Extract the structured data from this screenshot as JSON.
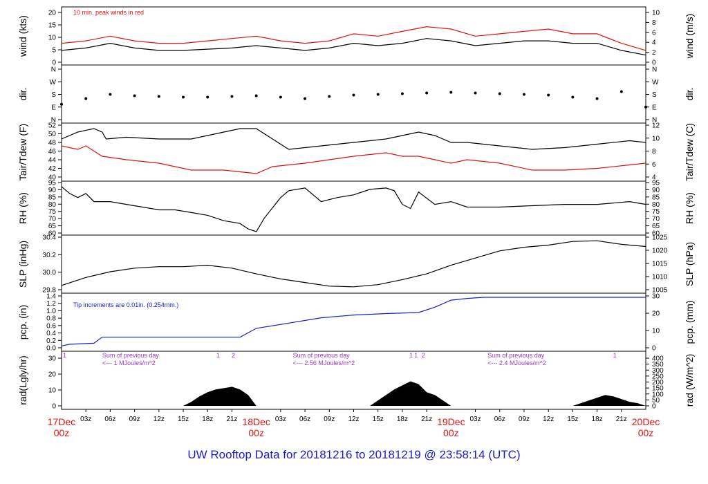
{
  "title": "UW Rooftop Data for 20181216  to  20181219 @ 23:58:14  (UTC)",
  "colors": {
    "black": "#000000",
    "red": "#e01010",
    "blue": "#1a1ad0",
    "purple": "#9933cc",
    "title": "#1a1ad0"
  },
  "chart_data": [
    {
      "id": "wind",
      "type": "line",
      "ylabel_left": "wind (kts)",
      "ylabel_right": "wind (m/s)",
      "yticks_left": [
        "0",
        "5",
        "10",
        "15",
        "20"
      ],
      "yticks_right": [
        "0",
        "2",
        "4",
        "6",
        "8",
        "10"
      ],
      "ylim": [
        0,
        21
      ],
      "ylim_right": [
        0,
        10.8
      ],
      "annotation": "10 min. peak winds in red",
      "series": [
        {
          "x": [
            0,
            3,
            6,
            9,
            12,
            15,
            18,
            21,
            24,
            27,
            30,
            33,
            36,
            39,
            42,
            45,
            48,
            51,
            54,
            57,
            60,
            63,
            66,
            69,
            72
          ],
          "values": [
            5,
            6,
            8,
            6,
            5,
            5,
            5.5,
            6,
            7,
            6,
            5,
            6,
            8,
            7,
            8,
            10,
            9,
            7,
            8,
            9,
            9,
            8,
            8,
            5,
            3
          ]
        },
        {
          "x": [
            0,
            3,
            6,
            9,
            12,
            15,
            18,
            21,
            24,
            27,
            30,
            33,
            36,
            39,
            42,
            45,
            48,
            51,
            54,
            57,
            60,
            63,
            66,
            69,
            72
          ],
          "values": [
            8,
            9,
            11,
            9,
            8,
            8,
            9,
            10,
            11,
            9,
            8,
            9,
            12,
            11,
            13,
            15,
            14,
            11,
            12,
            13,
            14,
            12,
            12,
            8,
            5
          ]
        }
      ]
    },
    {
      "id": "dir",
      "type": "scatter",
      "ylabel_left": "dir.",
      "ylabel_right": "dir.",
      "yticks_left": [
        "N",
        "E",
        "S",
        "W",
        "N"
      ],
      "yticks_right": [
        "N",
        "E",
        "S",
        "W",
        "N"
      ],
      "ylim": [
        0,
        360
      ],
      "x": [
        0,
        3,
        6,
        9,
        12,
        15,
        18,
        21,
        24,
        27,
        30,
        33,
        36,
        39,
        42,
        45,
        48,
        51,
        54,
        57,
        60,
        63,
        66,
        69,
        72
      ],
      "values": [
        110,
        150,
        180,
        170,
        165,
        160,
        160,
        165,
        170,
        160,
        150,
        165,
        175,
        180,
        185,
        190,
        195,
        190,
        185,
        180,
        175,
        160,
        150,
        200,
        90
      ]
    },
    {
      "id": "temp",
      "type": "line",
      "ylabel_left": "Tair/Tdew (F)",
      "ylabel_right": "Tair/Tdew (C)",
      "yticks_left": [
        "40",
        "42",
        "44",
        "46",
        "48",
        "50",
        "52"
      ],
      "yticks_right": [
        "4",
        "6",
        "8",
        "10",
        "12"
      ],
      "ylim": [
        39,
        54
      ],
      "ylim_right": [
        4,
        12
      ],
      "series": [
        {
          "x": [
            0,
            2,
            4,
            5,
            5.5,
            8,
            12,
            16,
            20,
            22,
            24,
            26,
            28,
            32,
            36,
            40,
            42,
            44,
            46,
            48,
            50,
            54,
            58,
            62,
            66,
            70,
            72
          ],
          "values": [
            50,
            52,
            53,
            52,
            50,
            50.5,
            50,
            50,
            52,
            53,
            53,
            50,
            47,
            48,
            49,
            50,
            51,
            52,
            51,
            49,
            49,
            48,
            47,
            47.5,
            48.5,
            49.5,
            49
          ]
        },
        {
          "x": [
            0,
            2,
            3,
            5,
            8,
            12,
            14,
            16,
            20,
            22,
            24,
            26,
            30,
            36,
            40,
            42,
            44,
            46,
            48,
            50,
            54,
            58,
            62,
            66,
            70,
            72
          ],
          "values": [
            48,
            47,
            48,
            45,
            44,
            43,
            42,
            41,
            41,
            40.5,
            40,
            42,
            43,
            45,
            46,
            45,
            45,
            44,
            43,
            44,
            43,
            41,
            41,
            41.5,
            42.5,
            43
          ]
        }
      ]
    },
    {
      "id": "rh",
      "type": "line",
      "ylabel_left": "RH (%)",
      "ylabel_right": "RH (%)",
      "yticks_left": [
        "60",
        "65",
        "70",
        "75",
        "80",
        "85",
        "90",
        "95"
      ],
      "yticks_right": [
        "60",
        "65",
        "70",
        "75",
        "80",
        "85",
        "90",
        "95"
      ],
      "ylim": [
        59,
        96
      ],
      "x": [
        0,
        1,
        2,
        3,
        4,
        6,
        8,
        10,
        12,
        14,
        16,
        18,
        20,
        22,
        23,
        24,
        25,
        27,
        28,
        30,
        32,
        34,
        36,
        38,
        40,
        41,
        42,
        43,
        44,
        46,
        48,
        50,
        54,
        58,
        62,
        66,
        70,
        72
      ],
      "values": [
        93,
        88,
        85,
        88,
        82,
        82,
        80,
        78,
        76,
        76,
        74,
        72,
        68,
        66,
        62,
        60,
        70,
        85,
        90,
        92,
        82,
        85,
        87,
        91,
        92,
        90,
        80,
        77,
        89,
        80,
        82,
        78,
        78,
        79,
        80,
        80,
        82,
        80
      ]
    },
    {
      "id": "slp",
      "type": "line",
      "ylabel_left": "SLP (inHg)",
      "ylabel_right": "SLP (hPa)",
      "yticks_left": [
        "29.8",
        "30.0",
        "30.2",
        "30.4"
      ],
      "yticks_right": [
        "1005",
        "1010",
        "1015",
        "1020",
        "1025"
      ],
      "ylim": [
        29.68,
        30.41
      ],
      "ylim_right": [
        1005.1,
        1029.8
      ],
      "x": [
        0,
        3,
        6,
        9,
        12,
        15,
        18,
        21,
        24,
        27,
        30,
        33,
        36,
        39,
        42,
        45,
        48,
        51,
        54,
        57,
        60,
        63,
        66,
        69,
        72
      ],
      "values": [
        29.74,
        29.85,
        29.93,
        29.98,
        30.0,
        30.0,
        30.02,
        29.98,
        29.9,
        29.83,
        29.78,
        29.73,
        29.72,
        29.75,
        29.82,
        29.9,
        30.02,
        30.12,
        30.22,
        30.27,
        30.3,
        30.35,
        30.36,
        30.31,
        30.28
      ]
    },
    {
      "id": "pcp",
      "type": "line",
      "ylabel_left": "pcp. (in)",
      "ylabel_right": "pcp. (mm)",
      "yticks_left": [
        "0.0",
        "0.2",
        "0.4",
        "0.6",
        "0.8",
        "1.0",
        "1.2",
        "1.4"
      ],
      "yticks_right": [
        "0",
        "10",
        "20",
        "30"
      ],
      "ylim": [
        -0.05,
        1.42
      ],
      "ylim_right": [
        -1.27,
        36.07
      ],
      "annotation": "Tip increments are 0.01in. (0.254mm.)",
      "x": [
        0,
        1,
        4,
        5,
        18,
        22,
        24,
        28,
        32,
        36,
        40,
        44,
        46,
        48,
        50,
        52,
        72
      ],
      "values": [
        0,
        0.05,
        0.08,
        0.25,
        0.25,
        0.25,
        0.5,
        0.65,
        0.8,
        0.88,
        0.92,
        0.95,
        1.1,
        1.3,
        1.35,
        1.38,
        1.38
      ]
    },
    {
      "id": "rad",
      "type": "area",
      "ylabel_left": "rad(Lgly/hr)",
      "ylabel_right": "rad (W/m^2)",
      "yticks_left": [
        "0",
        "10",
        "20",
        "30"
      ],
      "yticks_right": [
        "0",
        "50",
        "100",
        "150",
        "200",
        "250",
        "300",
        "350",
        "400"
      ],
      "ylim": [
        0,
        35
      ],
      "ylim_right": [
        0,
        406.4
      ],
      "annotations": [
        {
          "text": "Sum of previous day",
          "x": 4.5
        },
        {
          "text": "<--- 1 MJoules/m^2",
          "x": 4.5
        },
        {
          "text": "Sum of previous day",
          "x": 28
        },
        {
          "text": "<--- 2.56 MJoules/m^2",
          "x": 28
        },
        {
          "text": "Sum of previous day",
          "x": 52
        },
        {
          "text": "<--- 2.4 MJoules/m^2",
          "x": 52
        }
      ],
      "markers": [
        {
          "text": "1",
          "x": 0
        },
        {
          "text": "1",
          "x": 18.9
        },
        {
          "text": "2",
          "x": 20.8
        },
        {
          "text": "1",
          "x": 42.7
        },
        {
          "text": "1",
          "x": 43.3
        },
        {
          "text": "2",
          "x": 44.2
        },
        {
          "text": "1",
          "x": 67.8
        }
      ],
      "x": [
        0,
        15,
        16,
        17,
        18,
        19,
        20,
        21,
        22,
        23,
        24,
        38,
        39,
        40,
        41,
        42,
        43,
        44,
        45,
        46,
        47,
        48,
        63,
        64,
        65,
        66,
        67,
        68,
        69,
        70,
        71,
        72
      ],
      "values": [
        0,
        0,
        3,
        7,
        10,
        12,
        13,
        14,
        12,
        8,
        0,
        0,
        4,
        8,
        12,
        15,
        18,
        16,
        10,
        8,
        4,
        0,
        0,
        2,
        4,
        6,
        8,
        7,
        5,
        3,
        2,
        0
      ]
    }
  ],
  "x_axis": {
    "ticks": [
      "03z",
      "06z",
      "09z",
      "12z",
      "15z",
      "18z",
      "21z",
      "03z",
      "06z",
      "09z",
      "12z",
      "15z",
      "18z",
      "21z",
      "03z",
      "06z",
      "09z",
      "12z",
      "15z",
      "18z",
      "21z"
    ],
    "tick_hours": [
      3,
      6,
      9,
      12,
      15,
      18,
      21,
      27,
      30,
      33,
      36,
      39,
      42,
      45,
      51,
      54,
      57,
      60,
      63,
      66,
      69
    ],
    "day_labels": [
      {
        "date": "17Dec",
        "time": "00z",
        "hour": 0
      },
      {
        "date": "18Dec",
        "time": "00z",
        "hour": 24
      },
      {
        "date": "19Dec",
        "time": "00z",
        "hour": 48
      },
      {
        "date": "20Dec",
        "time": "00z",
        "hour": 72
      }
    ]
  }
}
